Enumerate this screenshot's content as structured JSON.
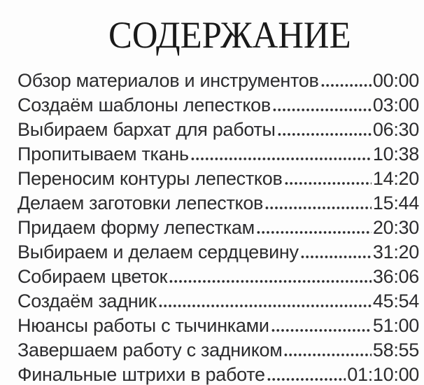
{
  "theme": {
    "bg": "#fdfdfd",
    "text_color": "#2c2c2e",
    "title_color": "#1a1a1a"
  },
  "header": {
    "title": "СОДЕРЖАНИЕ"
  },
  "toc": {
    "items": [
      {
        "label": "Обзор материалов и инструментов",
        "time": "00:00"
      },
      {
        "label": "Создаём шаблоны лепестков",
        "time": "03:00"
      },
      {
        "label": "Выбираем бархат для работы",
        "time": "06:30"
      },
      {
        "label": "Пропитываем ткань",
        "time": "10:38"
      },
      {
        "label": "Переносим контуры лепестков",
        "time": "14:20"
      },
      {
        "label": "Делаем заготовки лепестков",
        "time": "15:44"
      },
      {
        "label": "Придаем форму лепесткам",
        "time": "20:30"
      },
      {
        "label": "Выбираем и делаем сердцевину",
        "time": "31:20"
      },
      {
        "label": "Собираем цветок",
        "time": "36:06"
      },
      {
        "label": "Создаём задник",
        "time": "45:54"
      },
      {
        "label": "Нюансы работы с тычинками",
        "time": "51:00"
      },
      {
        "label": "Завершаем работу с задником",
        "time": "58:55"
      },
      {
        "label": "Финальные штрихи в работе",
        "time": "01:10:00"
      }
    ]
  }
}
